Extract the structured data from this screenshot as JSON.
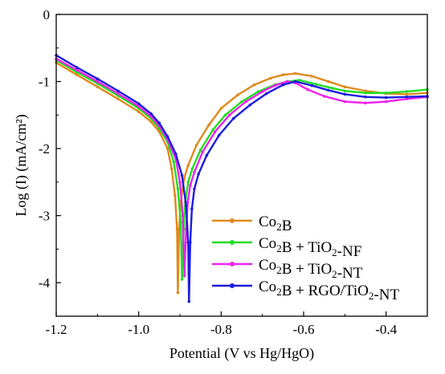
{
  "chart_data": {
    "type": "line",
    "title": "",
    "xlabel": "Potential (V vs Hg/HgO)",
    "ylabel": "Log (I) (mA/cm²)",
    "xlim": [
      -1.2,
      -0.3
    ],
    "ylim": [
      -4.5,
      0
    ],
    "xticks": [
      -1.2,
      -1.0,
      -0.8,
      -0.6,
      -0.4
    ],
    "xtick_labels": [
      "-1.2",
      "-1.0",
      "-0.8",
      "-0.6",
      "-0.4"
    ],
    "yticks": [
      0,
      -1,
      -2,
      -3,
      -4
    ],
    "ytick_labels": [
      "0",
      "-1",
      "-2",
      "-3",
      "-4"
    ],
    "grid": false,
    "legend_position": "bottom-right",
    "series": [
      {
        "name": "Co2B",
        "legend_parts": [
          "Co",
          "2",
          "B",
          "",
          "",
          ""
        ],
        "color": "#e08a1e",
        "points": [
          [
            -1.2,
            -0.72
          ],
          [
            -1.15,
            -0.9
          ],
          [
            -1.1,
            -1.08
          ],
          [
            -1.05,
            -1.26
          ],
          [
            -1.0,
            -1.45
          ],
          [
            -0.97,
            -1.6
          ],
          [
            -0.95,
            -1.75
          ],
          [
            -0.93,
            -2.0
          ],
          [
            -0.92,
            -2.3
          ],
          [
            -0.912,
            -2.7
          ],
          [
            -0.907,
            -3.2
          ],
          [
            -0.905,
            -4.15
          ],
          [
            -0.902,
            -3.2
          ],
          [
            -0.898,
            -2.8
          ],
          [
            -0.89,
            -2.45
          ],
          [
            -0.88,
            -2.25
          ],
          [
            -0.86,
            -1.95
          ],
          [
            -0.83,
            -1.65
          ],
          [
            -0.8,
            -1.4
          ],
          [
            -0.76,
            -1.2
          ],
          [
            -0.72,
            -1.05
          ],
          [
            -0.68,
            -0.95
          ],
          [
            -0.65,
            -0.9
          ],
          [
            -0.62,
            -0.88
          ],
          [
            -0.58,
            -0.92
          ],
          [
            -0.54,
            -1.0
          ],
          [
            -0.5,
            -1.08
          ],
          [
            -0.45,
            -1.14
          ],
          [
            -0.4,
            -1.18
          ],
          [
            -0.35,
            -1.19
          ],
          [
            -0.3,
            -1.17
          ]
        ]
      },
      {
        "name": "Co2B + TiO2-NF",
        "legend_parts": [
          "Co",
          "2",
          "B + TiO",
          "2",
          "-NF",
          ""
        ],
        "color": "#22dd22",
        "points": [
          [
            -1.2,
            -0.68
          ],
          [
            -1.15,
            -0.86
          ],
          [
            -1.1,
            -1.03
          ],
          [
            -1.05,
            -1.21
          ],
          [
            -1.0,
            -1.4
          ],
          [
            -0.97,
            -1.55
          ],
          [
            -0.95,
            -1.7
          ],
          [
            -0.93,
            -1.9
          ],
          [
            -0.915,
            -2.2
          ],
          [
            -0.905,
            -2.6
          ],
          [
            -0.898,
            -3.1
          ],
          [
            -0.895,
            -3.95
          ],
          [
            -0.891,
            -3.2
          ],
          [
            -0.887,
            -2.8
          ],
          [
            -0.88,
            -2.5
          ],
          [
            -0.87,
            -2.3
          ],
          [
            -0.85,
            -2.02
          ],
          [
            -0.82,
            -1.72
          ],
          [
            -0.79,
            -1.5
          ],
          [
            -0.75,
            -1.3
          ],
          [
            -0.71,
            -1.15
          ],
          [
            -0.67,
            -1.05
          ],
          [
            -0.64,
            -1.0
          ],
          [
            -0.61,
            -0.98
          ],
          [
            -0.57,
            -1.04
          ],
          [
            -0.53,
            -1.1
          ],
          [
            -0.5,
            -1.14
          ],
          [
            -0.45,
            -1.17
          ],
          [
            -0.4,
            -1.17
          ],
          [
            -0.35,
            -1.15
          ],
          [
            -0.3,
            -1.12
          ]
        ]
      },
      {
        "name": "Co2B + TiO2-NT",
        "legend_parts": [
          "Co",
          "2",
          "B + TiO",
          "2",
          "-NT",
          ""
        ],
        "color": "#ee22ee",
        "points": [
          [
            -1.2,
            -0.66
          ],
          [
            -1.15,
            -0.83
          ],
          [
            -1.1,
            -1.0
          ],
          [
            -1.05,
            -1.18
          ],
          [
            -1.0,
            -1.37
          ],
          [
            -0.97,
            -1.52
          ],
          [
            -0.95,
            -1.66
          ],
          [
            -0.93,
            -1.86
          ],
          [
            -0.91,
            -2.15
          ],
          [
            -0.9,
            -2.5
          ],
          [
            -0.893,
            -3.0
          ],
          [
            -0.889,
            -3.9
          ],
          [
            -0.885,
            -3.2
          ],
          [
            -0.881,
            -2.8
          ],
          [
            -0.875,
            -2.55
          ],
          [
            -0.865,
            -2.35
          ],
          [
            -0.845,
            -2.05
          ],
          [
            -0.815,
            -1.75
          ],
          [
            -0.78,
            -1.5
          ],
          [
            -0.74,
            -1.3
          ],
          [
            -0.7,
            -1.15
          ],
          [
            -0.67,
            -1.06
          ],
          [
            -0.64,
            -1.0
          ],
          [
            -0.62,
            -1.02
          ],
          [
            -0.59,
            -1.12
          ],
          [
            -0.55,
            -1.22
          ],
          [
            -0.5,
            -1.3
          ],
          [
            -0.45,
            -1.32
          ],
          [
            -0.4,
            -1.3
          ],
          [
            -0.35,
            -1.26
          ],
          [
            -0.3,
            -1.23
          ]
        ]
      },
      {
        "name": "Co2B + RGO/TiO2-NT",
        "legend_parts": [
          "Co",
          "2",
          "B + RGO/TiO",
          "2",
          "-NT",
          ""
        ],
        "color": "#1c1cdd",
        "points": [
          [
            -1.2,
            -0.61
          ],
          [
            -1.15,
            -0.79
          ],
          [
            -1.1,
            -0.96
          ],
          [
            -1.05,
            -1.14
          ],
          [
            -1.0,
            -1.33
          ],
          [
            -0.97,
            -1.48
          ],
          [
            -0.95,
            -1.62
          ],
          [
            -0.93,
            -1.82
          ],
          [
            -0.91,
            -2.08
          ],
          [
            -0.895,
            -2.4
          ],
          [
            -0.885,
            -2.85
          ],
          [
            -0.88,
            -3.4
          ],
          [
            -0.878,
            -4.28
          ],
          [
            -0.875,
            -3.4
          ],
          [
            -0.871,
            -2.9
          ],
          [
            -0.865,
            -2.6
          ],
          [
            -0.855,
            -2.38
          ],
          [
            -0.835,
            -2.1
          ],
          [
            -0.805,
            -1.8
          ],
          [
            -0.77,
            -1.55
          ],
          [
            -0.73,
            -1.35
          ],
          [
            -0.69,
            -1.18
          ],
          [
            -0.65,
            -1.05
          ],
          [
            -0.62,
            -1.0
          ],
          [
            -0.58,
            -1.06
          ],
          [
            -0.54,
            -1.13
          ],
          [
            -0.5,
            -1.19
          ],
          [
            -0.45,
            -1.23
          ],
          [
            -0.4,
            -1.24
          ],
          [
            -0.35,
            -1.23
          ],
          [
            -0.3,
            -1.22
          ]
        ]
      }
    ]
  }
}
